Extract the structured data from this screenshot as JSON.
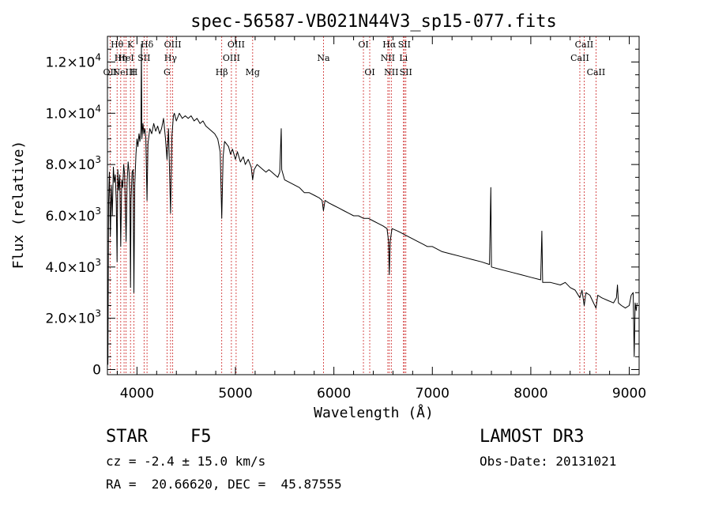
{
  "chart_data": {
    "type": "line",
    "title": "spec-56587-VB021N44V3_sp15-077.fits",
    "xlabel": "Wavelength (Å)",
    "ylabel": "Flux (relative)",
    "xlim": [
      3700,
      9100
    ],
    "ylim": [
      -200,
      13000
    ],
    "x_ticks": [
      4000,
      5000,
      6000,
      7000,
      8000,
      9000
    ],
    "y_ticks": [
      {
        "value": 0,
        "mantissa": "0",
        "exp": ""
      },
      {
        "value": 2000,
        "mantissa": "2.0×10",
        "exp": "3"
      },
      {
        "value": 4000,
        "mantissa": "4.0×10",
        "exp": "3"
      },
      {
        "value": 6000,
        "mantissa": "6.0×10",
        "exp": "3"
      },
      {
        "value": 8000,
        "mantissa": "8.0×10",
        "exp": "3"
      },
      {
        "value": 10000,
        "mantissa": "1.0×10",
        "exp": "4"
      },
      {
        "value": 12000,
        "mantissa": "1.2×10",
        "exp": "4"
      }
    ],
    "spectral_lines": [
      {
        "wavelength": 3727,
        "label": "OII",
        "row": 3
      },
      {
        "wavelength": 3798,
        "label": "Hθ",
        "row": 1
      },
      {
        "wavelength": 3835,
        "label": "Hη",
        "row": 2
      },
      {
        "wavelength": 3869,
        "label": "NeIII",
        "row": 3
      },
      {
        "wavelength": 3889,
        "label": "HeI",
        "row": 2
      },
      {
        "wavelength": 3934,
        "label": "K",
        "row": 1
      },
      {
        "wavelength": 3969,
        "label": "H",
        "row": 3
      },
      {
        "wavelength": 4072,
        "label": "SII",
        "row": 2
      },
      {
        "wavelength": 4102,
        "label": "Hδ",
        "row": 1
      },
      {
        "wavelength": 4305,
        "label": "G",
        "row": 3
      },
      {
        "wavelength": 4341,
        "label": "Hγ",
        "row": 2
      },
      {
        "wavelength": 4363,
        "label": "OIII",
        "row": 1
      },
      {
        "wavelength": 4861,
        "label": "Hβ",
        "row": 3
      },
      {
        "wavelength": 4959,
        "label": "OIII",
        "row": 2
      },
      {
        "wavelength": 5007,
        "label": "OIII",
        "row": 1
      },
      {
        "wavelength": 5175,
        "label": "Mg",
        "row": 3
      },
      {
        "wavelength": 5894,
        "label": "Na",
        "row": 2
      },
      {
        "wavelength": 6300,
        "label": "OI",
        "row": 1
      },
      {
        "wavelength": 6364,
        "label": "OI",
        "row": 3
      },
      {
        "wavelength": 6548,
        "label": "NII",
        "row": 2
      },
      {
        "wavelength": 6563,
        "label": "Hα",
        "row": 1
      },
      {
        "wavelength": 6583,
        "label": "NII",
        "row": 3
      },
      {
        "wavelength": 6707,
        "label": "Li",
        "row": 2
      },
      {
        "wavelength": 6716,
        "label": "SII",
        "row": 1
      },
      {
        "wavelength": 6731,
        "label": "SII",
        "row": 3
      },
      {
        "wavelength": 8498,
        "label": "CaII",
        "row": 2
      },
      {
        "wavelength": 8542,
        "label": "CaII",
        "row": 1
      },
      {
        "wavelength": 8662,
        "label": "CaII",
        "row": 3
      }
    ],
    "spectrum": [
      [
        3700,
        2800
      ],
      [
        3705,
        200
      ],
      [
        3712,
        6600
      ],
      [
        3720,
        7700
      ],
      [
        3730,
        5200
      ],
      [
        3740,
        7200
      ],
      [
        3750,
        6000
      ],
      [
        3760,
        7900
      ],
      [
        3770,
        7300
      ],
      [
        3780,
        7600
      ],
      [
        3790,
        6500
      ],
      [
        3798,
        4200
      ],
      [
        3805,
        7800
      ],
      [
        3815,
        7000
      ],
      [
        3825,
        7600
      ],
      [
        3835,
        4800
      ],
      [
        3845,
        7400
      ],
      [
        3855,
        7100
      ],
      [
        3865,
        8000
      ],
      [
        3875,
        7600
      ],
      [
        3889,
        5000
      ],
      [
        3900,
        7300
      ],
      [
        3910,
        8100
      ],
      [
        3920,
        7700
      ],
      [
        3928,
        6800
      ],
      [
        3934,
        3200
      ],
      [
        3940,
        6600
      ],
      [
        3950,
        7700
      ],
      [
        3960,
        7800
      ],
      [
        3969,
        3000
      ],
      [
        3978,
        7200
      ],
      [
        3990,
        8400
      ],
      [
        4000,
        9000
      ],
      [
        4010,
        8700
      ],
      [
        4020,
        9200
      ],
      [
        4030,
        8900
      ],
      [
        4040,
        9400
      ],
      [
        4045,
        12700
      ],
      [
        4050,
        9000
      ],
      [
        4060,
        9600
      ],
      [
        4070,
        9200
      ],
      [
        4080,
        9400
      ],
      [
        4090,
        9000
      ],
      [
        4102,
        6600
      ],
      [
        4112,
        8800
      ],
      [
        4130,
        9400
      ],
      [
        4150,
        9200
      ],
      [
        4170,
        9600
      ],
      [
        4190,
        9300
      ],
      [
        4210,
        9500
      ],
      [
        4230,
        9200
      ],
      [
        4250,
        9400
      ],
      [
        4270,
        9800
      ],
      [
        4290,
        9000
      ],
      [
        4305,
        8200
      ],
      [
        4320,
        9400
      ],
      [
        4341,
        6100
      ],
      [
        4355,
        9100
      ],
      [
        4370,
        9900
      ],
      [
        4380,
        10000
      ],
      [
        4400,
        9700
      ],
      [
        4430,
        10000
      ],
      [
        4460,
        9800
      ],
      [
        4490,
        9900
      ],
      [
        4520,
        9800
      ],
      [
        4550,
        9900
      ],
      [
        4580,
        9700
      ],
      [
        4610,
        9800
      ],
      [
        4640,
        9600
      ],
      [
        4670,
        9700
      ],
      [
        4700,
        9500
      ],
      [
        4730,
        9400
      ],
      [
        4760,
        9300
      ],
      [
        4790,
        9200
      ],
      [
        4820,
        9000
      ],
      [
        4845,
        8500
      ],
      [
        4861,
        5900
      ],
      [
        4875,
        8300
      ],
      [
        4890,
        8900
      ],
      [
        4910,
        8800
      ],
      [
        4930,
        8700
      ],
      [
        4950,
        8400
      ],
      [
        4970,
        8600
      ],
      [
        5000,
        8200
      ],
      [
        5020,
        8500
      ],
      [
        5050,
        8100
      ],
      [
        5080,
        8300
      ],
      [
        5100,
        8000
      ],
      [
        5130,
        8200
      ],
      [
        5160,
        7900
      ],
      [
        5175,
        7400
      ],
      [
        5190,
        7800
      ],
      [
        5220,
        8000
      ],
      [
        5250,
        7900
      ],
      [
        5280,
        7800
      ],
      [
        5310,
        7700
      ],
      [
        5340,
        7800
      ],
      [
        5370,
        7700
      ],
      [
        5400,
        7600
      ],
      [
        5430,
        7500
      ],
      [
        5450,
        7700
      ],
      [
        5465,
        9400
      ],
      [
        5470,
        7800
      ],
      [
        5500,
        7400
      ],
      [
        5550,
        7300
      ],
      [
        5600,
        7200
      ],
      [
        5650,
        7100
      ],
      [
        5700,
        6900
      ],
      [
        5750,
        6900
      ],
      [
        5800,
        6800
      ],
      [
        5850,
        6700
      ],
      [
        5880,
        6600
      ],
      [
        5894,
        6200
      ],
      [
        5910,
        6600
      ],
      [
        5950,
        6500
      ],
      [
        6000,
        6400
      ],
      [
        6050,
        6300
      ],
      [
        6100,
        6200
      ],
      [
        6150,
        6100
      ],
      [
        6200,
        6000
      ],
      [
        6250,
        6000
      ],
      [
        6300,
        5900
      ],
      [
        6350,
        5900
      ],
      [
        6400,
        5800
      ],
      [
        6450,
        5700
      ],
      [
        6500,
        5600
      ],
      [
        6540,
        5500
      ],
      [
        6555,
        5000
      ],
      [
        6563,
        3700
      ],
      [
        6572,
        5000
      ],
      [
        6590,
        5500
      ],
      [
        6650,
        5400
      ],
      [
        6700,
        5300
      ],
      [
        6750,
        5200
      ],
      [
        6800,
        5100
      ],
      [
        6850,
        5000
      ],
      [
        6900,
        4900
      ],
      [
        6950,
        4800
      ],
      [
        7000,
        4800
      ],
      [
        7100,
        4600
      ],
      [
        7200,
        4500
      ],
      [
        7300,
        4400
      ],
      [
        7400,
        4300
      ],
      [
        7500,
        4200
      ],
      [
        7580,
        4100
      ],
      [
        7594,
        7100
      ],
      [
        7600,
        4000
      ],
      [
        7700,
        3900
      ],
      [
        7800,
        3800
      ],
      [
        7900,
        3700
      ],
      [
        8000,
        3600
      ],
      [
        8100,
        3500
      ],
      [
        8112,
        5400
      ],
      [
        8120,
        3400
      ],
      [
        8200,
        3400
      ],
      [
        8300,
        3300
      ],
      [
        8350,
        3400
      ],
      [
        8400,
        3200
      ],
      [
        8450,
        3100
      ],
      [
        8498,
        2800
      ],
      [
        8520,
        3100
      ],
      [
        8542,
        2500
      ],
      [
        8560,
        3000
      ],
      [
        8600,
        2900
      ],
      [
        8662,
        2400
      ],
      [
        8680,
        2900
      ],
      [
        8720,
        2800
      ],
      [
        8780,
        2700
      ],
      [
        8840,
        2600
      ],
      [
        8870,
        2800
      ],
      [
        8880,
        3300
      ],
      [
        8890,
        2600
      ],
      [
        8920,
        2500
      ],
      [
        8960,
        2400
      ],
      [
        9000,
        2500
      ],
      [
        9020,
        2900
      ],
      [
        9040,
        3000
      ],
      [
        9050,
        500
      ],
      [
        9060,
        2600
      ],
      [
        9070,
        2300
      ],
      [
        9080,
        2600
      ]
    ]
  },
  "info": {
    "object_class": "STAR",
    "subclass": "F5",
    "redshift": "cz = -2.4 ± 15.0 km/s",
    "coordinates": "RA =  20.66620, DEC =  45.87555",
    "survey": "LAMOST DR3",
    "obs_date": "Obs-Date: 20131021"
  },
  "colors": {
    "axis": "#000000",
    "spectrum": "#000000",
    "line_marker": "#cc2222"
  }
}
